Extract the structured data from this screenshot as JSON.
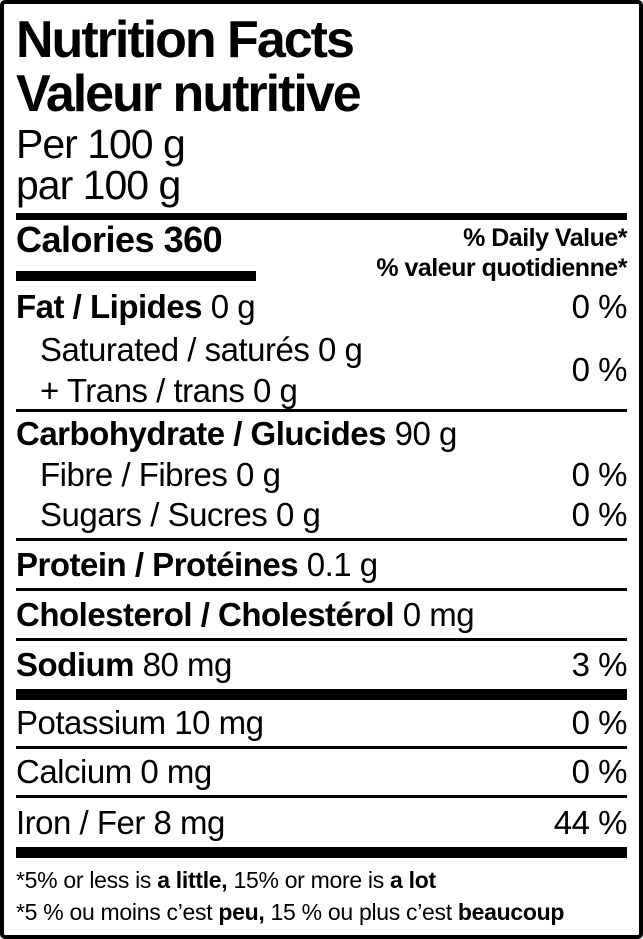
{
  "nutrition_label": {
    "title_en": "Nutrition Facts",
    "title_fr": "Valeur nutritive",
    "serving_en": "Per 100 g",
    "serving_fr": "par 100 g",
    "calories": {
      "label": "Calories",
      "value": "360"
    },
    "daily_value_header_en": "% Daily Value*",
    "daily_value_header_fr": "% valeur quotidienne*",
    "rows": {
      "fat": {
        "name": "Fat / Lipides",
        "amount": "0 g",
        "dv": "0 %"
      },
      "saturated_trans": {
        "line1": "Saturated / saturés 0 g",
        "line2": "+ Trans / trans 0 g",
        "dv": "0 %"
      },
      "carbohydrate": {
        "name": "Carbohydrate / Glucides",
        "amount": "90 g"
      },
      "fibre": {
        "text": "Fibre / Fibres 0 g",
        "dv": "0 %"
      },
      "sugars": {
        "text": "Sugars / Sucres 0 g",
        "dv": "0 %"
      },
      "protein": {
        "name": "Protein / Protéines",
        "amount": "0.1 g"
      },
      "cholesterol": {
        "name": "Cholesterol / Cholestérol",
        "amount": "0 mg"
      },
      "sodium": {
        "name": "Sodium",
        "amount": "80 mg",
        "dv": "3 %"
      },
      "potassium": {
        "text": "Potassium 10 mg",
        "dv": "0 %"
      },
      "calcium": {
        "text": "Calcium 0 mg",
        "dv": "0 %"
      },
      "iron": {
        "text": "Iron / Fer 8 mg",
        "dv": "44 %"
      }
    },
    "footnote_en": [
      {
        "text": "*5% or less is ",
        "bold": false
      },
      {
        "text": "a little,",
        "bold": true
      },
      {
        "text": " 15% or more is ",
        "bold": false
      },
      {
        "text": "a lot",
        "bold": true
      }
    ],
    "footnote_fr": [
      {
        "text": "*5 % ou moins c’est ",
        "bold": false
      },
      {
        "text": "peu,",
        "bold": true
      },
      {
        "text": " 15 % ou plus c’est ",
        "bold": false
      },
      {
        "text": "beaucoup",
        "bold": true
      }
    ],
    "colors": {
      "text": "#000000",
      "background": "#ffffff",
      "rule": "#000000"
    }
  }
}
